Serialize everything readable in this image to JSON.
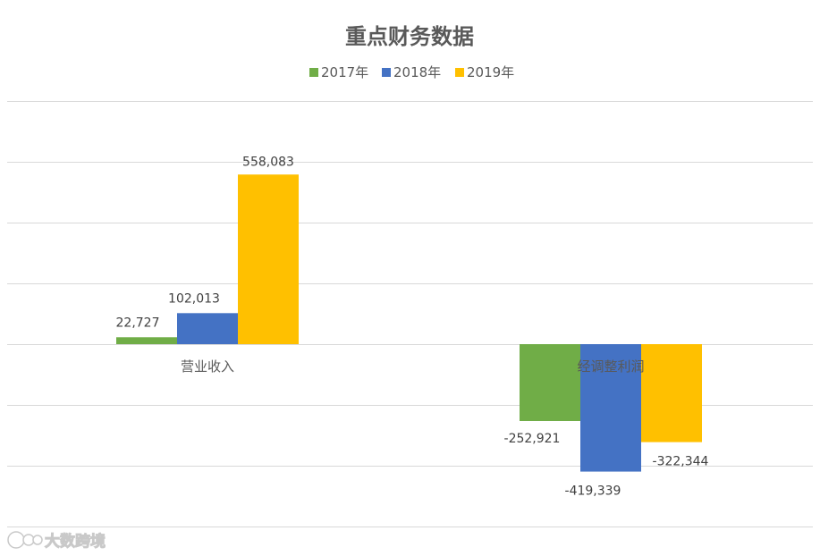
{
  "chart_data": {
    "type": "bar",
    "title": "重点财务数据",
    "categories": [
      "营业收入",
      "经调整利润"
    ],
    "series": [
      {
        "name": "2017年",
        "values": [
          22727,
          -252921
        ],
        "labels": [
          "22,727",
          "-252,921"
        ],
        "color": "#70ad47"
      },
      {
        "name": "2018年",
        "values": [
          102013,
          -419339
        ],
        "labels": [
          "102,013",
          "-419,339"
        ],
        "color": "#4472c4"
      },
      {
        "name": "2019年",
        "values": [
          558083,
          -322344
        ],
        "labels": [
          "558,083",
          "-322,344"
        ],
        "color": "#ffc000"
      }
    ],
    "ylim": [
      -600000,
      800000
    ],
    "grid": true,
    "legend_position": "top"
  },
  "watermark": {
    "text": "大数跨境"
  }
}
